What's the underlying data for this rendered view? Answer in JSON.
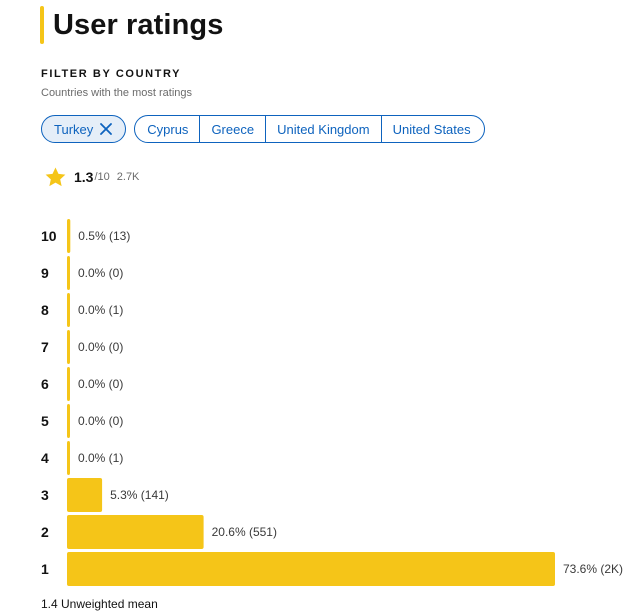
{
  "header": {
    "title": "User ratings"
  },
  "filter": {
    "heading": "FILTER BY COUNTRY",
    "subtitle": "Countries with the most ratings",
    "selected": "Turkey",
    "options": [
      "Cyprus",
      "Greece",
      "United Kingdom",
      "United States"
    ]
  },
  "summary": {
    "score": "1.3",
    "max": "/10",
    "votes": "2.7K"
  },
  "colors": {
    "accent": "#f5c518",
    "link": "#0e63be"
  },
  "chart_data": {
    "type": "bar",
    "orientation": "horizontal",
    "categories": [
      "10",
      "9",
      "8",
      "7",
      "6",
      "5",
      "4",
      "3",
      "2",
      "1"
    ],
    "values": [
      0.5,
      0.0,
      0.0,
      0.0,
      0.0,
      0.0,
      0.0,
      5.3,
      20.6,
      73.6
    ],
    "labels": [
      "0.5% (13)",
      "0.0% (0)",
      "0.0% (1)",
      "0.0% (0)",
      "0.0% (0)",
      "0.0% (0)",
      "0.0% (1)",
      "5.3% (141)",
      "20.6% (551)",
      "73.6% (2K)"
    ],
    "unit": "%",
    "xlim": [
      0,
      73.6
    ]
  },
  "footer": {
    "mean": "1.4 Unweighted mean"
  }
}
